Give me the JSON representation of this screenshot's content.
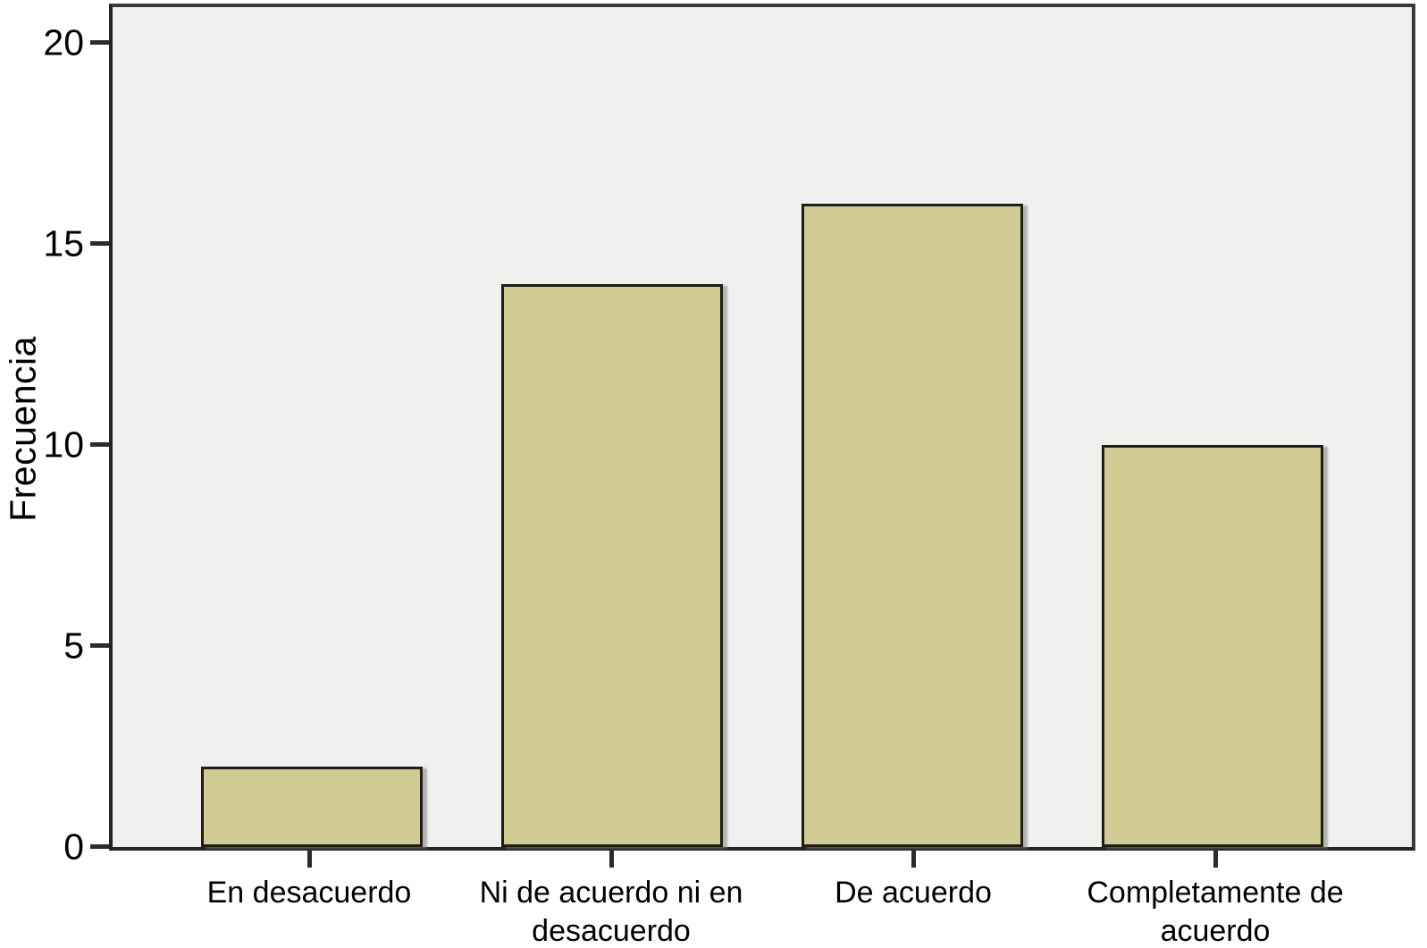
{
  "chart_data": {
    "type": "bar",
    "title": "",
    "xlabel": "",
    "ylabel": "Frecuencia",
    "categories": [
      "En desacuerdo",
      "Ni de acuerdo ni en desacuerdo",
      "De acuerdo",
      "Completamente de acuerdo"
    ],
    "values": [
      2,
      14,
      16,
      10
    ],
    "yticks": [
      0,
      5,
      10,
      15,
      20
    ],
    "ylim": [
      0,
      20.9
    ],
    "grid": false,
    "legend": "none",
    "bar_color": "#cfcb93",
    "bar_border_color": "#1e1e16",
    "plot_background": "#f0f0ef",
    "frame_color": "#3a3a3a",
    "text_color": "#000000"
  }
}
